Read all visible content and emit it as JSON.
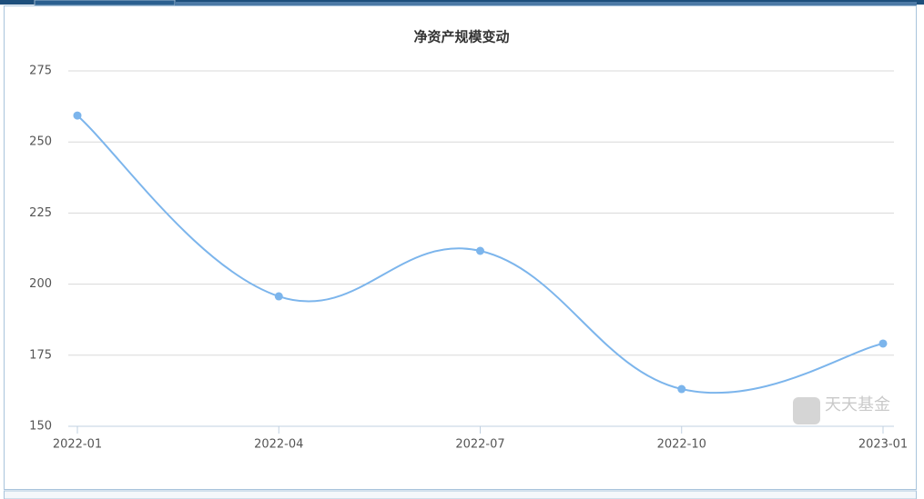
{
  "chart_data": {
    "type": "line",
    "title": "净资产规模变动",
    "categories": [
      "2022-01",
      "2022-04",
      "2022-07",
      "2022-10",
      "2023-01"
    ],
    "values": [
      259.3,
      195.7,
      211.7,
      163.1,
      179.1
    ],
    "color": "#7cb5ec",
    "ylim": [
      150,
      275
    ],
    "yticks": [
      150,
      175,
      200,
      225,
      250,
      275
    ],
    "grid": true,
    "watermark": "天天基金"
  }
}
